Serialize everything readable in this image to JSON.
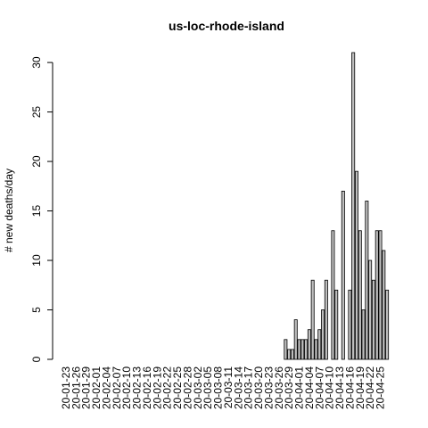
{
  "chart_data": {
    "type": "bar",
    "title": "us-loc-rhode-island",
    "y_label": "# new deaths/day",
    "categories": [
      "20-01-23",
      null,
      null,
      "20-01-26",
      null,
      null,
      "20-01-29",
      null,
      null,
      "20-02-01",
      null,
      null,
      "20-02-04",
      null,
      null,
      "20-02-07",
      null,
      null,
      "20-02-10",
      null,
      null,
      "20-02-13",
      null,
      null,
      "20-02-16",
      null,
      null,
      "20-02-19",
      null,
      null,
      "20-02-22",
      null,
      null,
      "20-02-25",
      null,
      null,
      "20-02-28",
      null,
      null,
      "20-03-02",
      null,
      null,
      "20-03-05",
      null,
      null,
      "20-03-08",
      null,
      null,
      "20-03-11",
      null,
      null,
      "20-03-14",
      null,
      null,
      "20-03-17",
      null,
      null,
      "20-03-20",
      null,
      null,
      "20-03-23",
      null,
      null,
      "20-03-26",
      null,
      null,
      "20-03-29",
      null,
      null,
      "20-04-01",
      null,
      null,
      "20-04-04",
      null,
      null,
      "20-04-07",
      null,
      null,
      "20-04-10",
      null,
      null,
      "20-04-13",
      null,
      null,
      "20-04-16",
      null,
      null,
      "20-04-19",
      null,
      null,
      "20-04-22",
      null,
      null,
      "20-04-25",
      null,
      null
    ],
    "values": [
      0,
      0,
      0,
      0,
      0,
      0,
      0,
      0,
      0,
      0,
      0,
      0,
      0,
      0,
      0,
      0,
      0,
      0,
      0,
      0,
      0,
      0,
      0,
      0,
      0,
      0,
      0,
      0,
      0,
      0,
      0,
      0,
      0,
      0,
      0,
      0,
      0,
      0,
      0,
      0,
      0,
      0,
      0,
      0,
      0,
      0,
      0,
      0,
      0,
      0,
      0,
      0,
      0,
      0,
      0,
      0,
      0,
      0,
      0,
      0,
      0,
      0,
      0,
      0,
      0,
      2,
      1,
      1,
      4,
      2,
      2,
      2,
      3,
      8,
      2,
      3,
      5,
      8,
      0,
      13,
      7,
      0,
      17,
      0,
      7,
      31,
      19,
      13,
      5,
      16,
      10,
      8,
      13,
      13,
      11,
      7
    ],
    "color": "#bebebe",
    "ylim": [
      0,
      31
    ],
    "yticks": [
      0,
      5,
      10,
      15,
      20,
      25,
      30
    ]
  }
}
